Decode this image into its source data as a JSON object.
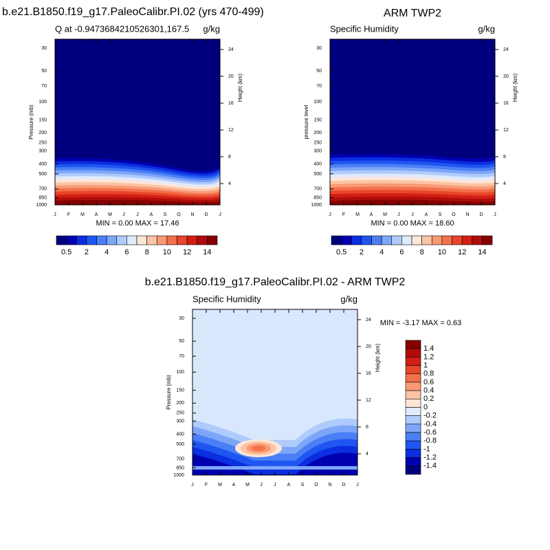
{
  "figure": {
    "panels": [
      {
        "title": "b.e21.B1850.f19_g17.PaleoCalibr.PI.02 (yrs 470-499)",
        "left_label": "Q at -0.9473684210526301,167.5",
        "units": "g/kg",
        "y_label": "Pressure (mb)",
        "y2_label": "Height (km)",
        "pressure_ticks": [
          30,
          50,
          70,
          100,
          150,
          200,
          250,
          300,
          400,
          500,
          700,
          850,
          1000
        ],
        "height_ticks": [
          24,
          20,
          16,
          12,
          8,
          4
        ],
        "months": [
          "J",
          "F",
          "M",
          "A",
          "M",
          "J",
          "J",
          "A",
          "S",
          "O",
          "N",
          "D",
          "J"
        ],
        "stats": "MIN =   0.00 MAX =  17.46",
        "colorbar_labels": [
          "0.5",
          "2",
          "4",
          "6",
          "8",
          "10",
          "12",
          "14"
        ]
      },
      {
        "title": "ARM TWP2",
        "left_label": "Specific Humidity",
        "units": "g/kg",
        "y_label": "pressure level",
        "y2_label": "Height (km)",
        "pressure_ticks": [
          30,
          50,
          70,
          100,
          150,
          200,
          250,
          300,
          400,
          500,
          700,
          850,
          1000
        ],
        "height_ticks": [
          24,
          20,
          16,
          12,
          8,
          4
        ],
        "months": [
          "J",
          "F",
          "M",
          "A",
          "M",
          "J",
          "J",
          "A",
          "S",
          "O",
          "N",
          "D",
          "J"
        ],
        "stats": "MIN =   0.00 MAX = 18.60",
        "colorbar_labels": [
          "0.5",
          "2",
          "4",
          "6",
          "8",
          "10",
          "12",
          "14"
        ]
      },
      {
        "title": "b.e21.B1850.f19_g17.PaleoCalibr.PI.02 - ARM TWP2",
        "left_label": "Specific Humidity",
        "units": "g/kg",
        "y_label": "Pressure (mb)",
        "y2_label": "Height (km)",
        "pressure_ticks": [
          30,
          50,
          70,
          100,
          150,
          200,
          250,
          300,
          400,
          500,
          700,
          850,
          1000
        ],
        "height_ticks": [
          24,
          20,
          16,
          12,
          8,
          4
        ],
        "months": [
          "J",
          "F",
          "M",
          "A",
          "M",
          "J",
          "J",
          "A",
          "S",
          "O",
          "N",
          "D",
          "J"
        ],
        "stats": "MIN =  -3.17 MAX =   0.63",
        "colorbar_labels": [
          "1.4",
          "1.2",
          "1",
          "0.8",
          "0.6",
          "0.4",
          "0.2",
          "0",
          "-0.2",
          "-0.4",
          "-0.6",
          "-0.8",
          "-1",
          "-1.2",
          "-1.4"
        ]
      }
    ]
  }
}
